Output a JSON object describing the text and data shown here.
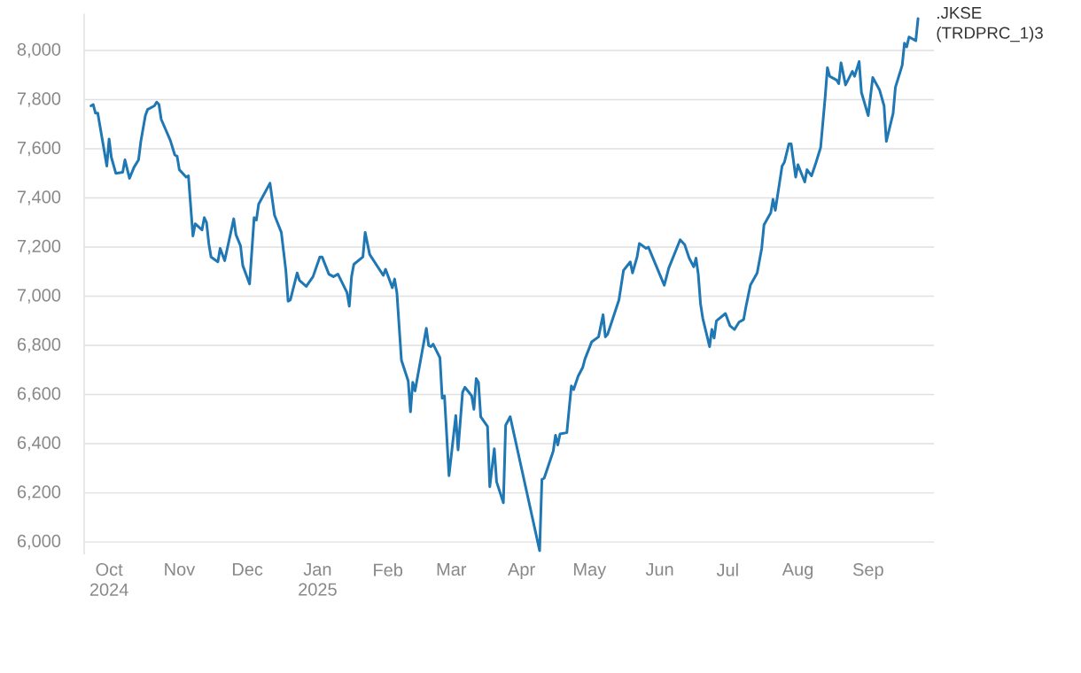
{
  "chart_data": {
    "type": "line",
    "x": [
      "2024-09-23",
      "2024-09-24",
      "2024-09-25",
      "2024-09-26",
      "2024-09-30",
      "2024-10-01",
      "2024-10-02",
      "2024-10-04",
      "2024-10-07",
      "2024-10-08",
      "2024-10-10",
      "2024-10-12",
      "2024-10-14",
      "2024-10-15",
      "2024-10-17",
      "2024-10-18",
      "2024-10-21",
      "2024-10-22",
      "2024-10-23",
      "2024-10-24",
      "2024-10-28",
      "2024-10-30",
      "2024-10-31",
      "2024-11-01",
      "2024-11-04",
      "2024-11-05",
      "2024-11-07",
      "2024-11-08",
      "2024-11-11",
      "2024-11-12",
      "2024-11-13",
      "2024-11-14",
      "2024-11-15",
      "2024-11-18",
      "2024-11-19",
      "2024-11-21",
      "2024-11-25",
      "2024-11-26",
      "2024-11-28",
      "2024-11-29",
      "2024-12-02",
      "2024-12-04",
      "2024-12-05",
      "2024-12-06",
      "2024-12-11",
      "2024-12-13",
      "2024-12-16",
      "2024-12-18",
      "2024-12-19",
      "2024-12-20",
      "2024-12-23",
      "2024-12-24",
      "2024-12-27",
      "2024-12-30",
      "2025-01-02",
      "2025-01-03",
      "2025-01-06",
      "2025-01-08",
      "2025-01-10",
      "2025-01-14",
      "2025-01-15",
      "2025-01-16",
      "2025-01-17",
      "2025-01-21",
      "2025-01-22",
      "2025-01-24",
      "2025-01-30",
      "2025-01-31",
      "2025-02-03",
      "2025-02-04",
      "2025-02-05",
      "2025-02-07",
      "2025-02-10",
      "2025-02-11",
      "2025-02-12",
      "2025-02-13",
      "2025-02-18",
      "2025-02-19",
      "2025-02-20",
      "2025-02-21",
      "2025-02-24",
      "2025-02-25",
      "2025-02-26",
      "2025-02-28",
      "2025-03-03",
      "2025-03-04",
      "2025-03-06",
      "2025-03-07",
      "2025-03-10",
      "2025-03-11",
      "2025-03-12",
      "2025-03-13",
      "2025-03-14",
      "2025-03-17",
      "2025-03-18",
      "2025-03-20",
      "2025-03-21",
      "2025-03-24",
      "2025-03-25",
      "2025-03-27",
      "2025-04-09",
      "2025-04-10",
      "2025-04-11",
      "2025-04-15",
      "2025-04-16",
      "2025-04-17",
      "2025-04-18",
      "2025-04-21",
      "2025-04-23",
      "2025-04-24",
      "2025-04-26",
      "2025-04-28",
      "2025-04-29",
      "2025-05-02",
      "2025-05-05",
      "2025-05-07",
      "2025-05-08",
      "2025-05-09",
      "2025-05-14",
      "2025-05-16",
      "2025-05-19",
      "2025-05-20",
      "2025-05-22",
      "2025-05-23",
      "2025-05-26",
      "2025-05-27",
      "2025-06-03",
      "2025-06-05",
      "2025-06-10",
      "2025-06-12",
      "2025-06-14",
      "2025-06-16",
      "2025-06-17",
      "2025-06-18",
      "2025-06-19",
      "2025-06-20",
      "2025-06-23",
      "2025-06-24",
      "2025-06-25",
      "2025-06-26",
      "2025-06-30",
      "2025-07-02",
      "2025-07-04",
      "2025-07-06",
      "2025-07-08",
      "2025-07-09",
      "2025-07-11",
      "2025-07-14",
      "2025-07-16",
      "2025-07-17",
      "2025-07-20",
      "2025-07-21",
      "2025-07-22",
      "2025-07-24",
      "2025-07-25",
      "2025-07-26",
      "2025-07-28",
      "2025-07-29",
      "2025-07-31",
      "2025-08-01",
      "2025-08-04",
      "2025-08-05",
      "2025-08-07",
      "2025-08-09",
      "2025-08-11",
      "2025-08-13",
      "2025-08-14",
      "2025-08-15",
      "2025-08-18",
      "2025-08-19",
      "2025-08-20",
      "2025-08-22",
      "2025-08-25",
      "2025-08-26",
      "2025-08-28",
      "2025-08-29",
      "2025-09-01",
      "2025-09-03",
      "2025-09-06",
      "2025-09-08",
      "2025-09-09",
      "2025-09-12",
      "2025-09-13",
      "2025-09-16",
      "2025-09-17",
      "2025-09-18",
      "2025-09-19",
      "2025-09-22",
      "2025-09-23"
    ],
    "series": [
      {
        "name": ".JKSE (TRDPRC_1)3",
        "color": "#1f77b4",
        "values": [
          7775,
          7780,
          7745,
          7745,
          7530,
          7640,
          7565,
          7500,
          7505,
          7555,
          7480,
          7525,
          7555,
          7630,
          7735,
          7760,
          7775,
          7790,
          7780,
          7720,
          7635,
          7575,
          7570,
          7515,
          7485,
          7490,
          7245,
          7295,
          7270,
          7320,
          7300,
          7215,
          7160,
          7140,
          7195,
          7145,
          7315,
          7250,
          7205,
          7125,
          7050,
          7320,
          7310,
          7375,
          7460,
          7330,
          7260,
          7105,
          6980,
          6985,
          7095,
          7065,
          7040,
          7080,
          7160,
          7160,
          7090,
          7080,
          7090,
          7015,
          6960,
          7080,
          7130,
          7160,
          7260,
          7170,
          7085,
          7110,
          7035,
          7070,
          7015,
          6740,
          6655,
          6530,
          6650,
          6615,
          6870,
          6800,
          6795,
          6805,
          6750,
          6585,
          6595,
          6270,
          6515,
          6375,
          6610,
          6630,
          6595,
          6540,
          6665,
          6650,
          6510,
          6470,
          6225,
          6380,
          6245,
          6160,
          6475,
          6510,
          5965,
          6255,
          6260,
          6370,
          6435,
          6395,
          6440,
          6445,
          6635,
          6620,
          6675,
          6710,
          6745,
          6815,
          6835,
          6925,
          6835,
          6845,
          6985,
          7105,
          7140,
          7095,
          7160,
          7215,
          7195,
          7200,
          7045,
          7115,
          7230,
          7210,
          7155,
          7120,
          7155,
          7090,
          6970,
          6910,
          6795,
          6865,
          6830,
          6900,
          6930,
          6880,
          6865,
          6895,
          6905,
          6955,
          7045,
          7095,
          7195,
          7290,
          7340,
          7395,
          7350,
          7470,
          7530,
          7545,
          7620,
          7620,
          7485,
          7535,
          7465,
          7515,
          7490,
          7545,
          7605,
          7810,
          7930,
          7895,
          7880,
          7865,
          7950,
          7860,
          7915,
          7895,
          7955,
          7830,
          7735,
          7890,
          7840,
          7775,
          7630,
          7745,
          7850,
          7940,
          8030,
          8015,
          8055,
          8040,
          8130
        ]
      }
    ],
    "xlim": [
      "2024-09-20",
      "2025-09-30"
    ],
    "xticks": [
      {
        "value": "2024-10-01",
        "label": "Oct 2024"
      },
      {
        "value": "2024-11-01",
        "label": "Nov"
      },
      {
        "value": "2024-12-01",
        "label": "Dec"
      },
      {
        "value": "2025-01-01",
        "label": "Jan 2025"
      },
      {
        "value": "2025-02-01",
        "label": "Feb"
      },
      {
        "value": "2025-03-01",
        "label": "Mar"
      },
      {
        "value": "2025-04-01",
        "label": "Apr"
      },
      {
        "value": "2025-05-01",
        "label": "May"
      },
      {
        "value": "2025-06-01",
        "label": "Jun"
      },
      {
        "value": "2025-07-01",
        "label": "Jul"
      },
      {
        "value": "2025-08-01",
        "label": "Aug"
      },
      {
        "value": "2025-09-01",
        "label": "Sep"
      }
    ],
    "yticks": [
      {
        "value": 6000,
        "label": "6,000"
      },
      {
        "value": 6200,
        "label": "6,200"
      },
      {
        "value": 6400,
        "label": "6,400"
      },
      {
        "value": 6600,
        "label": "6,600"
      },
      {
        "value": 6800,
        "label": "6,800"
      },
      {
        "value": 7000,
        "label": "7,000"
      },
      {
        "value": 7200,
        "label": "7,200"
      },
      {
        "value": 7400,
        "label": "7,400"
      },
      {
        "value": 7600,
        "label": "7,600"
      },
      {
        "value": 7800,
        "label": "7,800"
      },
      {
        "value": 8000,
        "label": "8,000"
      }
    ],
    "ylim": [
      5950,
      8150
    ],
    "grid": "y",
    "marker": "none",
    "line_style": "solid"
  }
}
